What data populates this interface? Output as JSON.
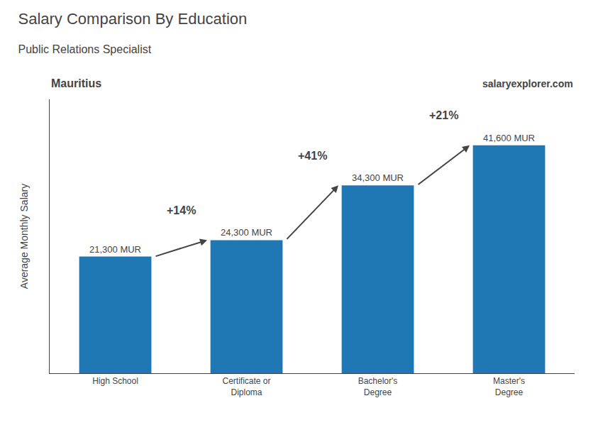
{
  "chart_data": {
    "type": "bar",
    "title": "Salary Comparison By Education",
    "subtitle": "Public Relations Specialist",
    "country": "Mauritius",
    "watermark": "salaryexplorer.com",
    "ylabel": "Average Monthly Salary",
    "categories": [
      "High School",
      "Certificate or\nDiploma",
      "Bachelor's\nDegree",
      "Master's\nDegree"
    ],
    "values": [
      21300,
      24300,
      34300,
      41600
    ],
    "value_labels": [
      "21,300 MUR",
      "24,300 MUR",
      "34,300 MUR",
      "41,600 MUR"
    ],
    "data_labels": true,
    "annotations": [
      "+14%",
      "+41%",
      "+21%"
    ],
    "ylim": [
      0,
      50000
    ],
    "tick_labels": "x",
    "grid": false
  }
}
